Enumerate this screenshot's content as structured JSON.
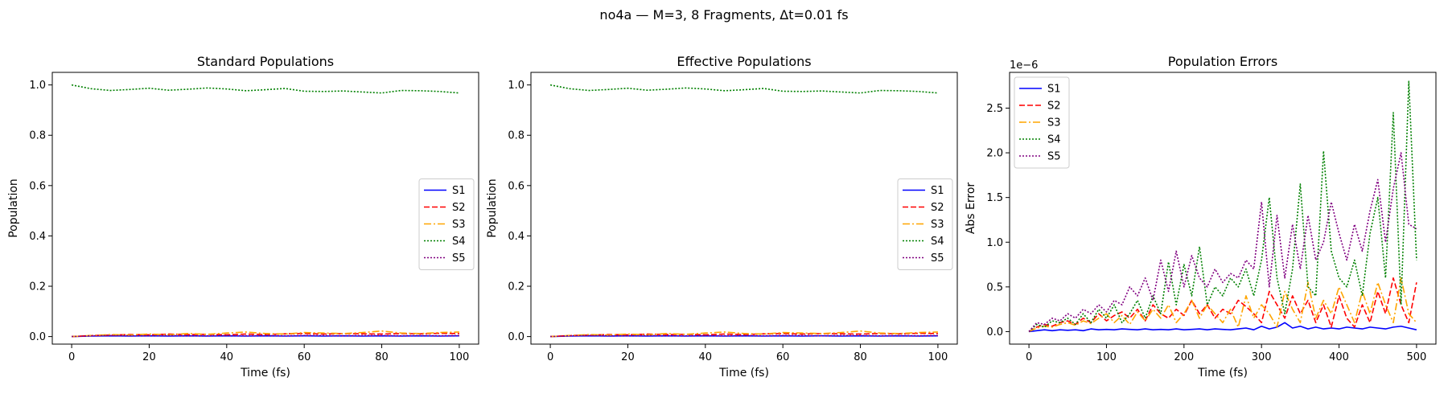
{
  "figure": {
    "suptitle": "no4a — M=3, 8 Fragments, Δt=0.01 fs"
  },
  "chart_data": [
    {
      "type": "line",
      "title": "Standard Populations",
      "xlabel": "Time (fs)",
      "ylabel": "Population",
      "xlim": [
        -5,
        105
      ],
      "ylim": [
        -0.03,
        1.05
      ],
      "xticks": [
        0,
        20,
        40,
        60,
        80,
        100
      ],
      "xtick_labels": [
        "0",
        "20",
        "40",
        "60",
        "80",
        "100"
      ],
      "yticks": [
        0,
        0.2,
        0.4,
        0.6,
        0.8,
        1.0
      ],
      "ytick_labels": [
        "0.0",
        "0.2",
        "0.4",
        "0.6",
        "0.8",
        "1.0"
      ],
      "scale_label": "",
      "grid": false,
      "legend_position": "center-right",
      "x": [
        0,
        5,
        10,
        15,
        20,
        25,
        30,
        35,
        40,
        45,
        50,
        55,
        60,
        65,
        70,
        75,
        80,
        85,
        90,
        95,
        100
      ],
      "series": [
        {
          "name": "S1",
          "color": "#0000ff",
          "dash": "solid",
          "values": [
            0,
            0.002,
            0.003,
            0.002,
            0.003,
            0.002,
            0.003,
            0.002,
            0.003,
            0.002,
            0.003,
            0.002,
            0.003,
            0.002,
            0.003,
            0.002,
            0.003,
            0.002,
            0.003,
            0.002,
            0.003
          ]
        },
        {
          "name": "S2",
          "color": "#ff0000",
          "dash": "dashed",
          "values": [
            0,
            0.004,
            0.006,
            0.008,
            0.007,
            0.01,
            0.008,
            0.009,
            0.007,
            0.01,
            0.008,
            0.011,
            0.012,
            0.01,
            0.012,
            0.011,
            0.01,
            0.012,
            0.011,
            0.013,
            0.012
          ]
        },
        {
          "name": "S3",
          "color": "#ffa500",
          "dash": "dashdot",
          "values": [
            0,
            0.004,
            0.008,
            0.006,
            0.01,
            0.007,
            0.012,
            0.009,
            0.014,
            0.018,
            0.012,
            0.01,
            0.016,
            0.014,
            0.012,
            0.016,
            0.022,
            0.014,
            0.012,
            0.016,
            0.018
          ]
        },
        {
          "name": "S4",
          "color": "#008000",
          "dash": "dotted",
          "values": [
            1.0,
            0.985,
            0.978,
            0.982,
            0.987,
            0.979,
            0.983,
            0.988,
            0.984,
            0.977,
            0.981,
            0.986,
            0.975,
            0.974,
            0.976,
            0.972,
            0.968,
            0.978,
            0.977,
            0.974,
            0.968
          ]
        },
        {
          "name": "S5",
          "color": "#800080",
          "dash": "dotted",
          "values": [
            0,
            0.003,
            0.004,
            0.003,
            0.003,
            0.004,
            0.003,
            0.003,
            0.004,
            0.003,
            0.004,
            0.003,
            0.004,
            0.004,
            0.003,
            0.004,
            0.004,
            0.003,
            0.004,
            0.003,
            0.004
          ]
        }
      ]
    },
    {
      "type": "line",
      "title": "Effective Populations",
      "xlabel": "Time (fs)",
      "ylabel": "Population",
      "xlim": [
        -5,
        105
      ],
      "ylim": [
        -0.03,
        1.05
      ],
      "xticks": [
        0,
        20,
        40,
        60,
        80,
        100
      ],
      "xtick_labels": [
        "0",
        "20",
        "40",
        "60",
        "80",
        "100"
      ],
      "yticks": [
        0,
        0.2,
        0.4,
        0.6,
        0.8,
        1.0
      ],
      "ytick_labels": [
        "0.0",
        "0.2",
        "0.4",
        "0.6",
        "0.8",
        "1.0"
      ],
      "scale_label": "",
      "grid": false,
      "legend_position": "center-right",
      "x": [
        0,
        5,
        10,
        15,
        20,
        25,
        30,
        35,
        40,
        45,
        50,
        55,
        60,
        65,
        70,
        75,
        80,
        85,
        90,
        95,
        100
      ],
      "series": [
        {
          "name": "S1",
          "color": "#0000ff",
          "dash": "solid",
          "values": [
            0,
            0.002,
            0.003,
            0.002,
            0.003,
            0.002,
            0.003,
            0.002,
            0.003,
            0.002,
            0.003,
            0.002,
            0.003,
            0.002,
            0.003,
            0.002,
            0.003,
            0.002,
            0.003,
            0.002,
            0.003
          ]
        },
        {
          "name": "S2",
          "color": "#ff0000",
          "dash": "dashed",
          "values": [
            0,
            0.004,
            0.006,
            0.008,
            0.007,
            0.01,
            0.008,
            0.009,
            0.007,
            0.01,
            0.008,
            0.011,
            0.012,
            0.01,
            0.012,
            0.011,
            0.01,
            0.012,
            0.011,
            0.013,
            0.012
          ]
        },
        {
          "name": "S3",
          "color": "#ffa500",
          "dash": "dashdot",
          "values": [
            0,
            0.004,
            0.008,
            0.006,
            0.01,
            0.007,
            0.012,
            0.009,
            0.014,
            0.018,
            0.012,
            0.01,
            0.016,
            0.014,
            0.012,
            0.016,
            0.022,
            0.014,
            0.012,
            0.016,
            0.018
          ]
        },
        {
          "name": "S4",
          "color": "#008000",
          "dash": "dotted",
          "values": [
            1.0,
            0.985,
            0.978,
            0.982,
            0.987,
            0.979,
            0.983,
            0.988,
            0.984,
            0.977,
            0.981,
            0.986,
            0.975,
            0.974,
            0.976,
            0.972,
            0.968,
            0.978,
            0.977,
            0.974,
            0.968
          ]
        },
        {
          "name": "S5",
          "color": "#800080",
          "dash": "dotted",
          "values": [
            0,
            0.003,
            0.004,
            0.003,
            0.003,
            0.004,
            0.003,
            0.003,
            0.004,
            0.003,
            0.004,
            0.003,
            0.004,
            0.004,
            0.003,
            0.004,
            0.004,
            0.003,
            0.004,
            0.003,
            0.004
          ]
        }
      ]
    },
    {
      "type": "line",
      "title": "Population Errors",
      "xlabel": "Time (fs)",
      "ylabel": "Abs Error",
      "xlim": [
        -25,
        525
      ],
      "ylim": [
        -0.14,
        2.9
      ],
      "xticks": [
        0,
        100,
        200,
        300,
        400,
        500
      ],
      "xtick_labels": [
        "0",
        "100",
        "200",
        "300",
        "400",
        "500"
      ],
      "yticks": [
        0,
        0.5,
        1.0,
        1.5,
        2.0,
        2.5
      ],
      "ytick_labels": [
        "0.0",
        "0.5",
        "1.0",
        "1.5",
        "2.0",
        "2.5"
      ],
      "scale_label": "1e−6",
      "grid": false,
      "legend_position": "upper-left",
      "x": [
        0,
        10,
        20,
        30,
        40,
        50,
        60,
        70,
        80,
        90,
        100,
        110,
        120,
        130,
        140,
        150,
        160,
        170,
        180,
        190,
        200,
        210,
        220,
        230,
        240,
        250,
        260,
        270,
        280,
        290,
        300,
        310,
        320,
        330,
        340,
        350,
        360,
        370,
        380,
        390,
        400,
        410,
        420,
        430,
        440,
        450,
        460,
        470,
        480,
        490,
        500
      ],
      "series": [
        {
          "name": "S1",
          "color": "#0000ff",
          "dash": "solid",
          "values": [
            0,
            0.01,
            0.02,
            0.01,
            0.02,
            0.015,
            0.02,
            0.01,
            0.03,
            0.02,
            0.025,
            0.02,
            0.03,
            0.025,
            0.02,
            0.03,
            0.02,
            0.025,
            0.02,
            0.03,
            0.02,
            0.025,
            0.03,
            0.02,
            0.03,
            0.025,
            0.02,
            0.03,
            0.04,
            0.02,
            0.06,
            0.03,
            0.05,
            0.1,
            0.04,
            0.06,
            0.03,
            0.05,
            0.03,
            0.04,
            0.03,
            0.05,
            0.04,
            0.03,
            0.05,
            0.04,
            0.03,
            0.05,
            0.06,
            0.04,
            0.02
          ]
        },
        {
          "name": "S2",
          "color": "#ff0000",
          "dash": "dashed",
          "values": [
            0,
            0.05,
            0.08,
            0.06,
            0.1,
            0.12,
            0.08,
            0.15,
            0.1,
            0.2,
            0.12,
            0.18,
            0.22,
            0.15,
            0.25,
            0.12,
            0.3,
            0.2,
            0.15,
            0.25,
            0.18,
            0.35,
            0.2,
            0.3,
            0.15,
            0.25,
            0.2,
            0.35,
            0.28,
            0.2,
            0.1,
            0.45,
            0.3,
            0.15,
            0.4,
            0.2,
            0.35,
            0.1,
            0.3,
            0.05,
            0.4,
            0.15,
            0.05,
            0.3,
            0.1,
            0.45,
            0.2,
            0.6,
            0.3,
            0.1,
            0.55
          ]
        },
        {
          "name": "S3",
          "color": "#ffa500",
          "dash": "dashdot",
          "values": [
            0,
            0.04,
            0.06,
            0.05,
            0.08,
            0.1,
            0.07,
            0.12,
            0.09,
            0.15,
            0.2,
            0.1,
            0.18,
            0.08,
            0.22,
            0.12,
            0.25,
            0.15,
            0.3,
            0.1,
            0.2,
            0.35,
            0.15,
            0.3,
            0.2,
            0.1,
            0.25,
            0.05,
            0.4,
            0.15,
            0.3,
            0.2,
            0.05,
            0.45,
            0.25,
            0.1,
            0.55,
            0.15,
            0.35,
            0.2,
            0.5,
            0.3,
            0.1,
            0.45,
            0.2,
            0.55,
            0.3,
            0.1,
            0.6,
            0.2,
            0.1
          ]
        },
        {
          "name": "S4",
          "color": "#008000",
          "dash": "dotted",
          "values": [
            0,
            0.08,
            0.05,
            0.12,
            0.1,
            0.15,
            0.08,
            0.2,
            0.1,
            0.25,
            0.15,
            0.3,
            0.1,
            0.2,
            0.35,
            0.15,
            0.4,
            0.2,
            0.78,
            0.3,
            0.75,
            0.4,
            0.95,
            0.3,
            0.5,
            0.4,
            0.6,
            0.5,
            0.7,
            0.4,
            0.8,
            1.5,
            0.6,
            0.2,
            0.7,
            1.65,
            0.5,
            0.4,
            2.02,
            0.9,
            0.6,
            0.5,
            0.8,
            0.4,
            1.1,
            1.5,
            0.6,
            2.45,
            0.3,
            2.8,
            0.8
          ]
        },
        {
          "name": "S5",
          "color": "#800080",
          "dash": "dotted",
          "values": [
            0,
            0.1,
            0.08,
            0.15,
            0.12,
            0.2,
            0.15,
            0.25,
            0.2,
            0.3,
            0.22,
            0.35,
            0.3,
            0.5,
            0.4,
            0.6,
            0.35,
            0.8,
            0.45,
            0.9,
            0.5,
            0.85,
            0.6,
            0.5,
            0.7,
            0.55,
            0.65,
            0.6,
            0.8,
            0.7,
            1.45,
            0.5,
            1.3,
            0.6,
            1.2,
            0.7,
            1.3,
            0.8,
            1.0,
            1.45,
            1.1,
            0.8,
            1.2,
            0.9,
            1.35,
            1.7,
            1.0,
            1.6,
            2.0,
            1.2,
            1.15
          ]
        }
      ]
    }
  ]
}
